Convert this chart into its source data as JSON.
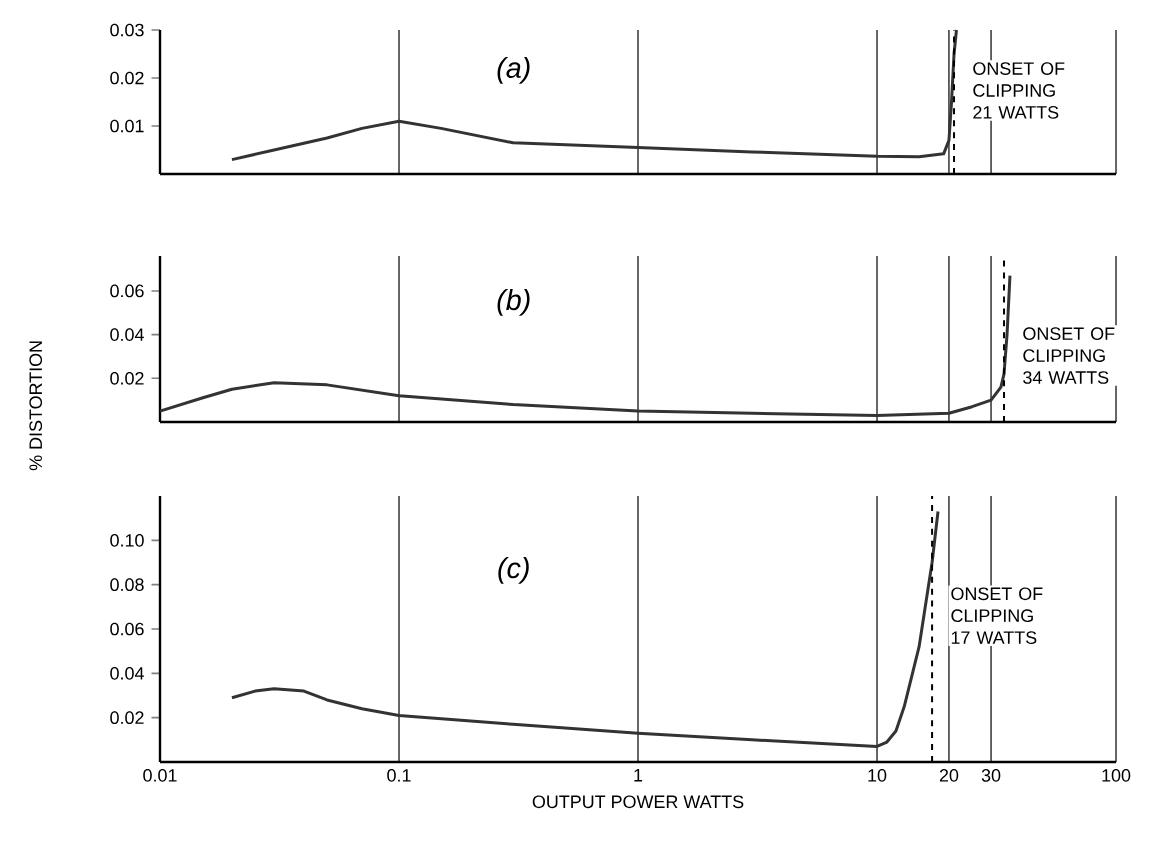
{
  "chart_data": [
    {
      "type": "line",
      "log": "x",
      "grid": "x",
      "tick_labels": "y",
      "line_style": "solid",
      "xlim": [
        0.01,
        100
      ],
      "xticks": [
        0.01,
        0.1,
        1,
        10,
        20,
        30,
        100
      ],
      "ylim": [
        0,
        0.03
      ],
      "yticks": [
        0.01,
        0.02,
        0.03
      ],
      "series": [
        {
          "color": "#333333",
          "x": [
            0.02,
            0.03,
            0.05,
            0.07,
            0.1,
            0.15,
            0.3,
            1,
            3,
            10,
            15,
            19,
            20,
            20.5,
            21,
            21.5
          ],
          "values": [
            0.003,
            0.005,
            0.0075,
            0.0095,
            0.011,
            0.0095,
            0.0065,
            0.0055,
            0.0046,
            0.0037,
            0.0036,
            0.0042,
            0.007,
            0.015,
            0.025,
            0.03
          ]
        }
      ],
      "ref_lines": [
        {
          "axis": "x",
          "value": 21,
          "label": "ONSET OF CLIPPING 21 WATTS",
          "line_style": "dashed"
        }
      ],
      "annotations": [
        "(a)"
      ]
    },
    {
      "type": "line",
      "log": "x",
      "grid": "x",
      "tick_labels": "y",
      "line_style": "solid",
      "ylabel": "% DISTORTION",
      "xlim": [
        0.01,
        100
      ],
      "xticks": [
        0.01,
        0.1,
        1,
        10,
        20,
        30,
        100
      ],
      "ylim": [
        0,
        0.076
      ],
      "yticks": [
        0.02,
        0.04,
        0.06
      ],
      "series": [
        {
          "color": "#333333",
          "x": [
            0.01,
            0.015,
            0.02,
            0.03,
            0.05,
            0.1,
            0.3,
            1,
            3,
            10,
            20,
            25,
            30,
            33,
            34,
            35,
            36
          ],
          "values": [
            0.005,
            0.011,
            0.015,
            0.018,
            0.017,
            0.012,
            0.008,
            0.005,
            0.004,
            0.003,
            0.004,
            0.007,
            0.01,
            0.016,
            0.022,
            0.04,
            0.067
          ]
        }
      ],
      "ref_lines": [
        {
          "axis": "x",
          "value": 34,
          "label": "ONSET OF CLIPPING 34 WATTS",
          "line_style": "dashed"
        }
      ],
      "annotations": [
        "(b)"
      ]
    },
    {
      "type": "line",
      "log": "x",
      "grid": "x",
      "line_style": "solid",
      "xlabel": "OUTPUT POWER WATTS",
      "xlim": [
        0.01,
        100
      ],
      "xticks": [
        0.01,
        0.1,
        1,
        10,
        20,
        30,
        100
      ],
      "ylim": [
        0,
        0.12
      ],
      "yticks": [
        0.02,
        0.04,
        0.06,
        0.08,
        {
          "value": 0.1,
          "label": "0.10"
        }
      ],
      "series": [
        {
          "color": "#333333",
          "x": [
            0.02,
            0.025,
            0.03,
            0.04,
            0.05,
            0.07,
            0.1,
            0.3,
            1,
            3,
            10,
            11,
            12,
            13,
            15,
            17,
            18
          ],
          "values": [
            0.029,
            0.032,
            0.033,
            0.032,
            0.028,
            0.024,
            0.021,
            0.017,
            0.013,
            0.01,
            0.007,
            0.009,
            0.014,
            0.025,
            0.052,
            0.09,
            0.113
          ]
        }
      ],
      "ref_lines": [
        {
          "axis": "x",
          "value": 17,
          "label": "ONSET OF CLIPPING 17 WATTS",
          "line_style": "dashed"
        }
      ],
      "annotations": [
        "(c)"
      ]
    }
  ]
}
